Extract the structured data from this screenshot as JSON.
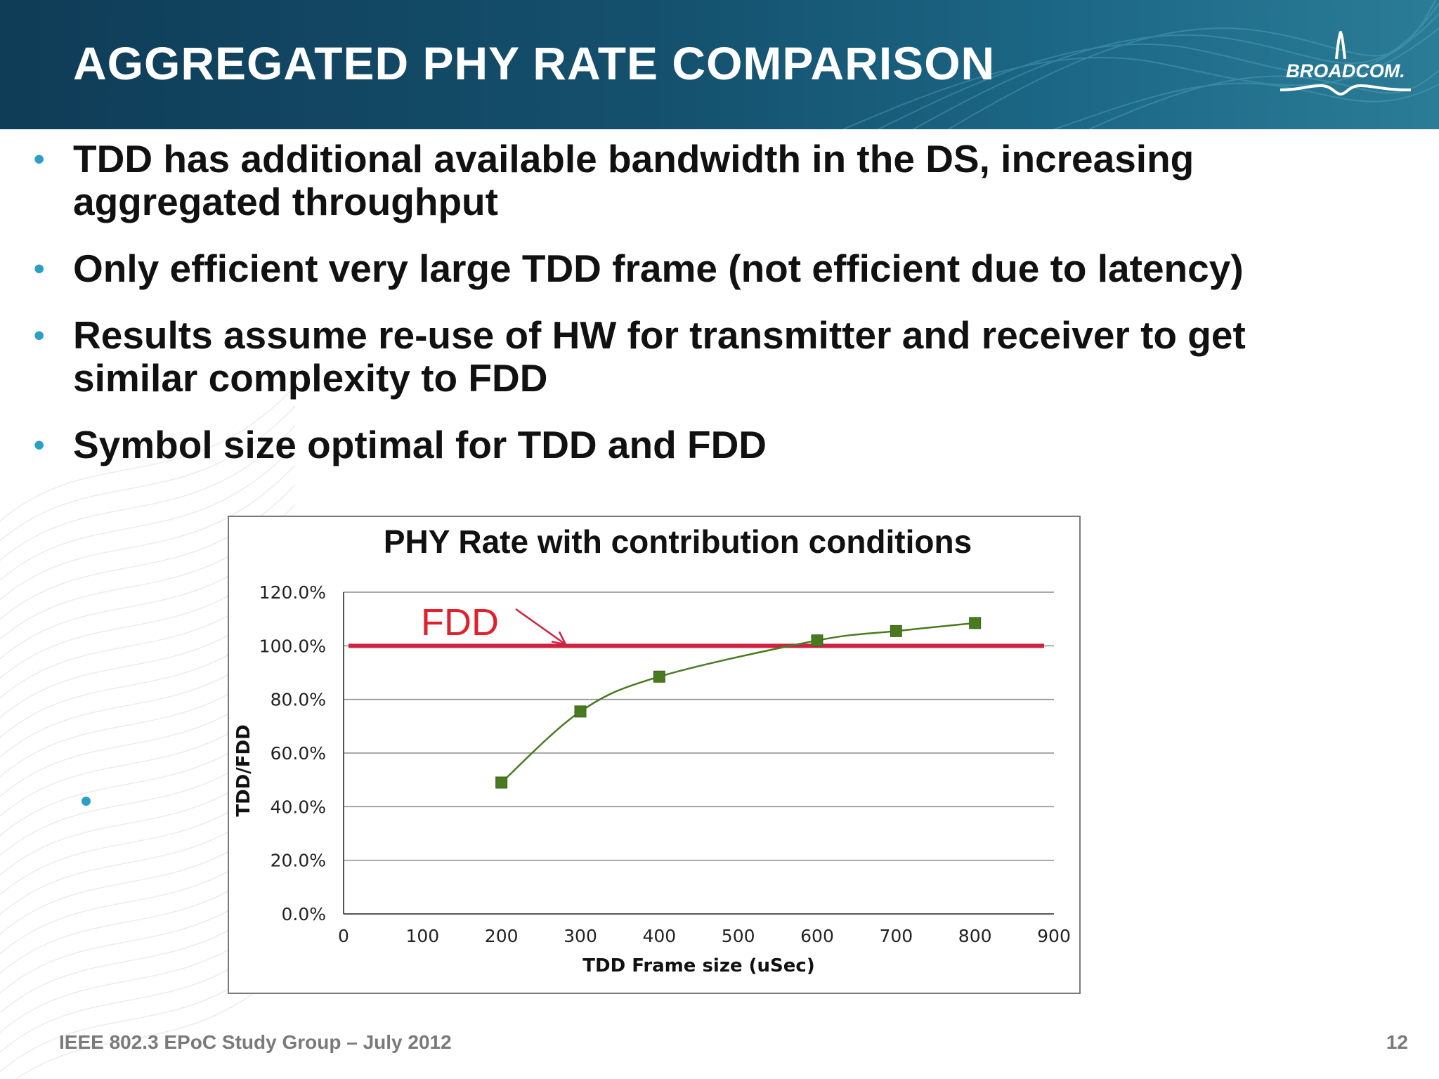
{
  "slide": {
    "title": "AGGREGATED PHY RATE COMPARISON",
    "logo_text": "BROADCOM.",
    "bullets": [
      "TDD has additional available bandwidth in the DS, increasing aggregated throughput",
      "Only efficient very large TDD frame (not efficient due to latency)",
      "Results assume re-use of HW for transmitter and receiver to get similar complexity to FDD",
      "Symbol size optimal for TDD and FDD"
    ],
    "footer_left": "IEEE 802.3 EPoC Study Group – July 2012",
    "page_number": "12"
  },
  "colors": {
    "header": "#14506d",
    "bullet": "#2aa0c4",
    "series": "#4a7a1f",
    "marker": "#4a7a1f",
    "fdd_line": "#d0213f",
    "fdd_text": "#e0202a",
    "grid": "#8c8c8c",
    "footer": "#7a7a7a"
  },
  "chart_data": {
    "type": "line",
    "title": "PHY Rate with contribution conditions",
    "xlabel": "TDD Frame size (uSec)",
    "ylabel": "TDD/FDD",
    "xlim": [
      0,
      900
    ],
    "ylim": [
      0,
      120
    ],
    "x_ticks": [
      0,
      100,
      200,
      300,
      400,
      500,
      600,
      700,
      800,
      900
    ],
    "x_tick_labels": [
      "0",
      "100",
      "200",
      "300",
      "400",
      "500",
      "600",
      "700",
      "800",
      "900"
    ],
    "y_ticks": [
      0,
      20,
      40,
      60,
      80,
      100,
      120
    ],
    "y_tick_labels": [
      "0.0%",
      "20.0%",
      "40.0%",
      "60.0%",
      "80.0%",
      "100.0%",
      "120.0%"
    ],
    "grid": true,
    "series": [
      {
        "x": [
          200,
          300,
          400,
          600,
          700,
          800
        ],
        "y": [
          49,
          75.5,
          88.5,
          102,
          105.5,
          108.5
        ],
        "marker": "square",
        "smooth": true
      }
    ],
    "reference_line": {
      "y": 100,
      "label": "FDD"
    }
  }
}
